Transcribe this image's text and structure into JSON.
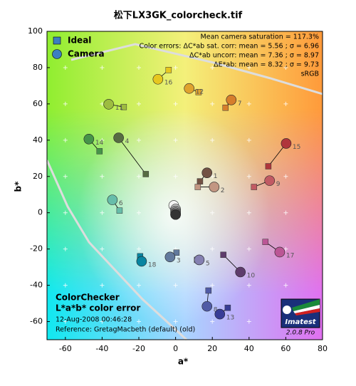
{
  "chart_data": {
    "type": "scatter",
    "title": "松下LX3GK_colorcheck.tif",
    "xlabel": "a*",
    "ylabel": "b*",
    "xlim": [
      -70,
      80
    ],
    "ylim": [
      -70,
      100
    ],
    "xticks": [
      -60,
      -40,
      -20,
      0,
      20,
      40,
      60,
      80
    ],
    "yticks": [
      -60,
      -40,
      -20,
      0,
      20,
      40,
      60,
      80,
      100
    ],
    "grid": true,
    "legend": "upper left",
    "categories": [
      "1",
      "2",
      "3",
      "4",
      "5",
      "6",
      "7",
      "8",
      "9",
      "10",
      "11",
      "12",
      "13",
      "14",
      "15",
      "16",
      "17",
      "18",
      null,
      null,
      null,
      null,
      null,
      null
    ],
    "colors": [
      "#735244",
      "#c29682",
      "#627a9d",
      "#576c43",
      "#8580b1",
      "#67bdaa",
      "#d67e2c",
      "#505ba6",
      "#c15a63",
      "#5e3c6c",
      "#9dbc40",
      "#e0a32e",
      "#383d96",
      "#469449",
      "#af363c",
      "#e7c71f",
      "#bb5695",
      "#0885a1",
      "#f3f3f2",
      "#c8c8c8",
      "#a0a0a0",
      "#7a7a79",
      "#555555",
      "#343434"
    ],
    "series": [
      {
        "name": "Ideal",
        "color": "#3c7fc0",
        "marker": "square",
        "x": [
          13.3,
          12.1,
          0.5,
          -16.2,
          11.7,
          -30.5,
          27.2,
          17.9,
          42.7,
          26,
          -28.2,
          12.5,
          28.4,
          -41.4,
          50.5,
          -3.8,
          48.9,
          -19.3,
          0,
          0,
          0,
          0,
          0,
          0
        ],
        "values": [
          17.3,
          14.2,
          -22,
          21.3,
          -26,
          1.2,
          57.9,
          -42.9,
          14.2,
          -23.2,
          58.3,
          66.5,
          -52.4,
          33.9,
          25.6,
          78.7,
          -16.1,
          -24,
          0,
          0,
          0,
          0,
          0,
          0
        ]
      },
      {
        "name": "Camera",
        "color": "#3c7fc0",
        "marker": "circle",
        "x": [
          17.1,
          21,
          -3,
          -31,
          12.9,
          -34.4,
          30.3,
          17.1,
          51.2,
          35.3,
          -36.4,
          7.4,
          24.1,
          -47.2,
          60.2,
          -9.6,
          56.7,
          -18.5,
          -1,
          0,
          0,
          0,
          0,
          0
        ],
        "values": [
          22,
          14.2,
          -24.4,
          41.3,
          -26,
          7.1,
          62.2,
          -51.6,
          17.7,
          -32.7,
          59.8,
          68.5,
          -55.9,
          40.6,
          38.2,
          73.6,
          -21.7,
          -26.8,
          4,
          2,
          1,
          0,
          -1,
          -1
        ]
      }
    ],
    "annotations": [
      "Mean camera saturation = 117.3%",
      "Color errors:  ΔC*ab sat. corr:  mean = 5.56 ;  σ = 6.96",
      "ΔC*ab uncorr:  mean = 7.36 ;  σ = 8.97",
      "ΔE*ab:  mean = 8.32 ;  σ = 9.73",
      "sRGB"
    ],
    "notes": [
      "ColorChecker",
      "L*a*b* color error",
      "12-Aug-2008 00:46:28",
      "Reference: GretagMacbeth (default) (old)"
    ],
    "logo": {
      "name": "Imatest",
      "version": "2.0.8  Pro"
    }
  }
}
